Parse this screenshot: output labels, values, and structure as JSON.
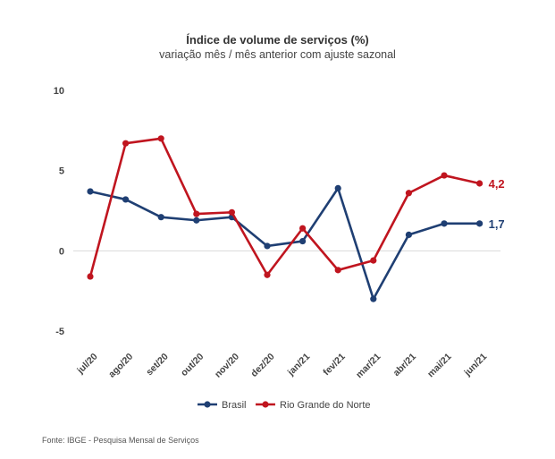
{
  "chart_data": {
    "type": "line",
    "title": "Índice de volume de serviços (%)",
    "subtitle": "variação mês / mês anterior com ajuste sazonal",
    "categories": [
      "jul/20",
      "ago/20",
      "set/20",
      "out/20",
      "nov/20",
      "dez/20",
      "jan/21",
      "fev/21",
      "mar/21",
      "abr/21",
      "mai/21",
      "jun/21"
    ],
    "ylim": [
      -5,
      10
    ],
    "yticks": [
      10,
      5,
      0,
      -5
    ],
    "grid": false,
    "legend_position": "bottom",
    "series": [
      {
        "name": "Brasil",
        "color": "#1f3f73",
        "values": [
          3.7,
          3.2,
          2.1,
          1.9,
          2.1,
          0.3,
          0.6,
          3.9,
          -3.0,
          1.0,
          1.7,
          1.7
        ],
        "end_label": "1,7"
      },
      {
        "name": "Rio Grande do Norte",
        "color": "#c0151f",
        "values": [
          -1.6,
          6.7,
          7.0,
          2.3,
          2.4,
          -1.5,
          1.4,
          -1.2,
          -0.6,
          3.6,
          4.7,
          4.2
        ],
        "end_label": "4,2"
      }
    ],
    "source": "Fonte: IBGE - Pesquisa Mensal de Serviços"
  }
}
